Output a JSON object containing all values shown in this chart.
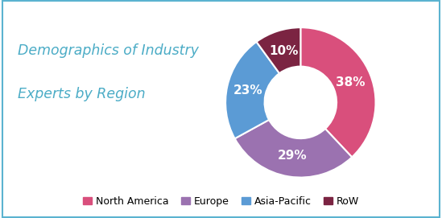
{
  "title_line1": "Demographics of Industry",
  "title_line2": "Experts by Region",
  "title_color": "#4bacc6",
  "title_fontsize": 12.5,
  "slices": [
    38,
    29,
    23,
    10
  ],
  "labels": [
    "North America",
    "Europe",
    "Asia-Pacific",
    "RoW"
  ],
  "colors": [
    "#d94f7c",
    "#9b72b0",
    "#5b9bd5",
    "#7b2442"
  ],
  "pct_labels": [
    "38%",
    "29%",
    "23%",
    "10%"
  ],
  "background_color": "#ffffff",
  "border_color": "#5bb3d0",
  "legend_fontsize": 9,
  "pct_fontsize": 11
}
